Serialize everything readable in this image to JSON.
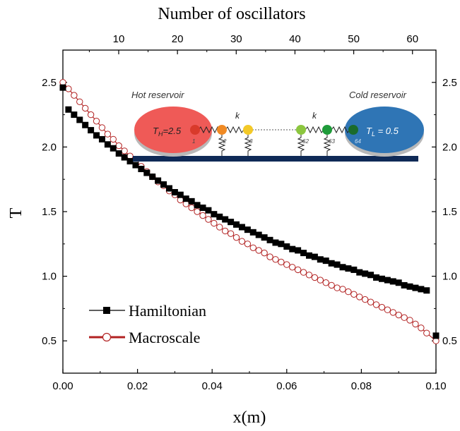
{
  "chart_data": {
    "type": "scatter",
    "title": "Number of oscillators",
    "xlabel": "x(m)",
    "ylabel": "T",
    "xlim": [
      0.0,
      0.1
    ],
    "ylim": [
      0.25,
      2.75
    ],
    "x_ticks": [
      "0.00",
      "0.02",
      "0.04",
      "0.06",
      "0.08",
      "0.10"
    ],
    "x_tick_values": [
      0.0,
      0.02,
      0.04,
      0.06,
      0.08,
      0.1
    ],
    "y_ticks": [
      "0.5",
      "1.0",
      "1.5",
      "2.0",
      "2.5"
    ],
    "y_tick_values": [
      0.5,
      1.0,
      1.5,
      2.0,
      2.5
    ],
    "top_ticks": [
      "10",
      "20",
      "30",
      "40",
      "50",
      "60"
    ],
    "top_tick_values": [
      10,
      20,
      30,
      40,
      50,
      60
    ],
    "top_axis_range": [
      0.5,
      64
    ],
    "right_ticks": [
      "0.5",
      "1.0",
      "1.5",
      "2.0",
      "2.5"
    ],
    "grid": false,
    "legend_position": "bottom-left",
    "series": [
      {
        "name": "Hamiltonian",
        "marker": "filled-square",
        "color": "#000000",
        "x": [
          0.0,
          0.0015,
          0.003,
          0.0045,
          0.006,
          0.0075,
          0.009,
          0.0105,
          0.012,
          0.0135,
          0.015,
          0.0165,
          0.018,
          0.0195,
          0.021,
          0.0225,
          0.024,
          0.0255,
          0.027,
          0.0285,
          0.03,
          0.0315,
          0.033,
          0.0345,
          0.036,
          0.0375,
          0.039,
          0.0405,
          0.042,
          0.0435,
          0.045,
          0.0465,
          0.048,
          0.0495,
          0.051,
          0.0525,
          0.054,
          0.0555,
          0.057,
          0.0585,
          0.06,
          0.0615,
          0.063,
          0.0645,
          0.066,
          0.0675,
          0.069,
          0.0705,
          0.072,
          0.0735,
          0.075,
          0.0765,
          0.078,
          0.0795,
          0.081,
          0.0825,
          0.084,
          0.0855,
          0.087,
          0.0885,
          0.09,
          0.0915,
          0.093,
          0.0945,
          0.096,
          0.0975,
          0.1
        ],
        "y": [
          2.46,
          2.29,
          2.25,
          2.21,
          2.17,
          2.13,
          2.09,
          2.06,
          2.02,
          1.99,
          1.95,
          1.92,
          1.89,
          1.86,
          1.83,
          1.8,
          1.77,
          1.74,
          1.71,
          1.68,
          1.65,
          1.63,
          1.6,
          1.58,
          1.55,
          1.53,
          1.51,
          1.48,
          1.46,
          1.44,
          1.42,
          1.4,
          1.38,
          1.36,
          1.34,
          1.32,
          1.3,
          1.28,
          1.26,
          1.25,
          1.23,
          1.21,
          1.2,
          1.18,
          1.16,
          1.15,
          1.13,
          1.12,
          1.1,
          1.09,
          1.07,
          1.06,
          1.05,
          1.03,
          1.02,
          1.01,
          0.99,
          0.98,
          0.97,
          0.96,
          0.95,
          0.93,
          0.92,
          0.91,
          0.9,
          0.89,
          0.54
        ]
      },
      {
        "name": "Macroscale",
        "marker": "open-circle",
        "color": "#b22222",
        "line": true,
        "x": [
          0.0,
          0.0015,
          0.003,
          0.0045,
          0.006,
          0.0075,
          0.009,
          0.0105,
          0.012,
          0.0135,
          0.015,
          0.0165,
          0.018,
          0.0195,
          0.021,
          0.0225,
          0.024,
          0.0255,
          0.027,
          0.0285,
          0.03,
          0.0315,
          0.033,
          0.0345,
          0.036,
          0.0375,
          0.039,
          0.0405,
          0.042,
          0.0435,
          0.045,
          0.0465,
          0.048,
          0.0495,
          0.051,
          0.0525,
          0.054,
          0.0555,
          0.057,
          0.0585,
          0.06,
          0.0615,
          0.063,
          0.0645,
          0.066,
          0.0675,
          0.069,
          0.0705,
          0.072,
          0.0735,
          0.075,
          0.0765,
          0.078,
          0.0795,
          0.081,
          0.0825,
          0.084,
          0.0855,
          0.087,
          0.0885,
          0.09,
          0.0915,
          0.093,
          0.0945,
          0.096,
          0.0975,
          0.1
        ],
        "y": [
          2.5,
          2.45,
          2.4,
          2.35,
          2.3,
          2.25,
          2.2,
          2.15,
          2.1,
          2.06,
          2.01,
          1.97,
          1.93,
          1.89,
          1.85,
          1.81,
          1.77,
          1.73,
          1.7,
          1.66,
          1.63,
          1.59,
          1.56,
          1.53,
          1.5,
          1.47,
          1.44,
          1.41,
          1.38,
          1.35,
          1.33,
          1.3,
          1.27,
          1.25,
          1.22,
          1.2,
          1.18,
          1.15,
          1.13,
          1.11,
          1.09,
          1.07,
          1.05,
          1.03,
          1.01,
          0.99,
          0.97,
          0.95,
          0.93,
          0.91,
          0.9,
          0.88,
          0.86,
          0.84,
          0.82,
          0.8,
          0.78,
          0.76,
          0.74,
          0.72,
          0.7,
          0.68,
          0.66,
          0.63,
          0.6,
          0.56,
          0.5
        ]
      }
    ]
  },
  "inset": {
    "hot_label": "Hot reservoir",
    "cold_label": "Cold reservoir",
    "hot_temp_T": "T",
    "hot_temp_sub": "H",
    "hot_temp_value": "=2.5",
    "cold_temp_T": "T",
    "cold_temp_sub": "L",
    "cold_temp_value": " = 0.5",
    "spring_label_left": "k",
    "spring_label_right": "k",
    "oscillator_numbers": [
      "1",
      "2",
      "3",
      "62",
      "63",
      "64"
    ],
    "hot_color": "#ef5a57",
    "cold_color": "#2f75b5",
    "bar_color": "#0f2a57",
    "oscillator_colors": [
      "#d93a2b",
      "#f08a24",
      "#f3c928",
      "#8cc63f",
      "#1f9b3a",
      "#1a6b2c"
    ]
  }
}
